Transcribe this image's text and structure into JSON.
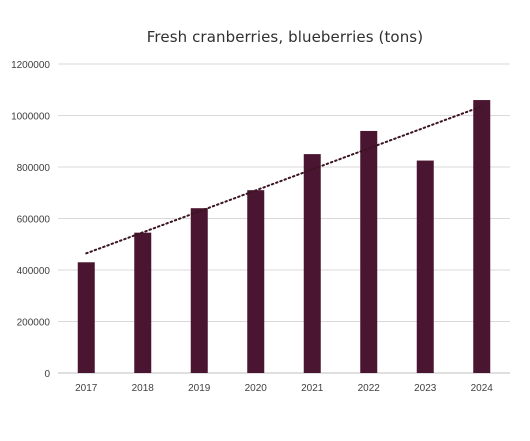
{
  "chart_data": {
    "type": "bar",
    "title": "Fresh cranberries, blueberries (tons)",
    "categories": [
      "2017",
      "2018",
      "2019",
      "2020",
      "2021",
      "2022",
      "2023",
      "2024"
    ],
    "values": [
      430000,
      545000,
      640000,
      710000,
      850000,
      940000,
      825000,
      1060000
    ],
    "ylim": [
      0,
      1200000
    ],
    "yticks": [
      "0",
      "200000",
      "400000",
      "600000",
      "800000",
      "1000000",
      "1200000"
    ],
    "grid": true,
    "trendline": {
      "type": "linear",
      "style": "dotted"
    },
    "bar_color": "#4a1530",
    "trendline_color": "#3a1420"
  }
}
